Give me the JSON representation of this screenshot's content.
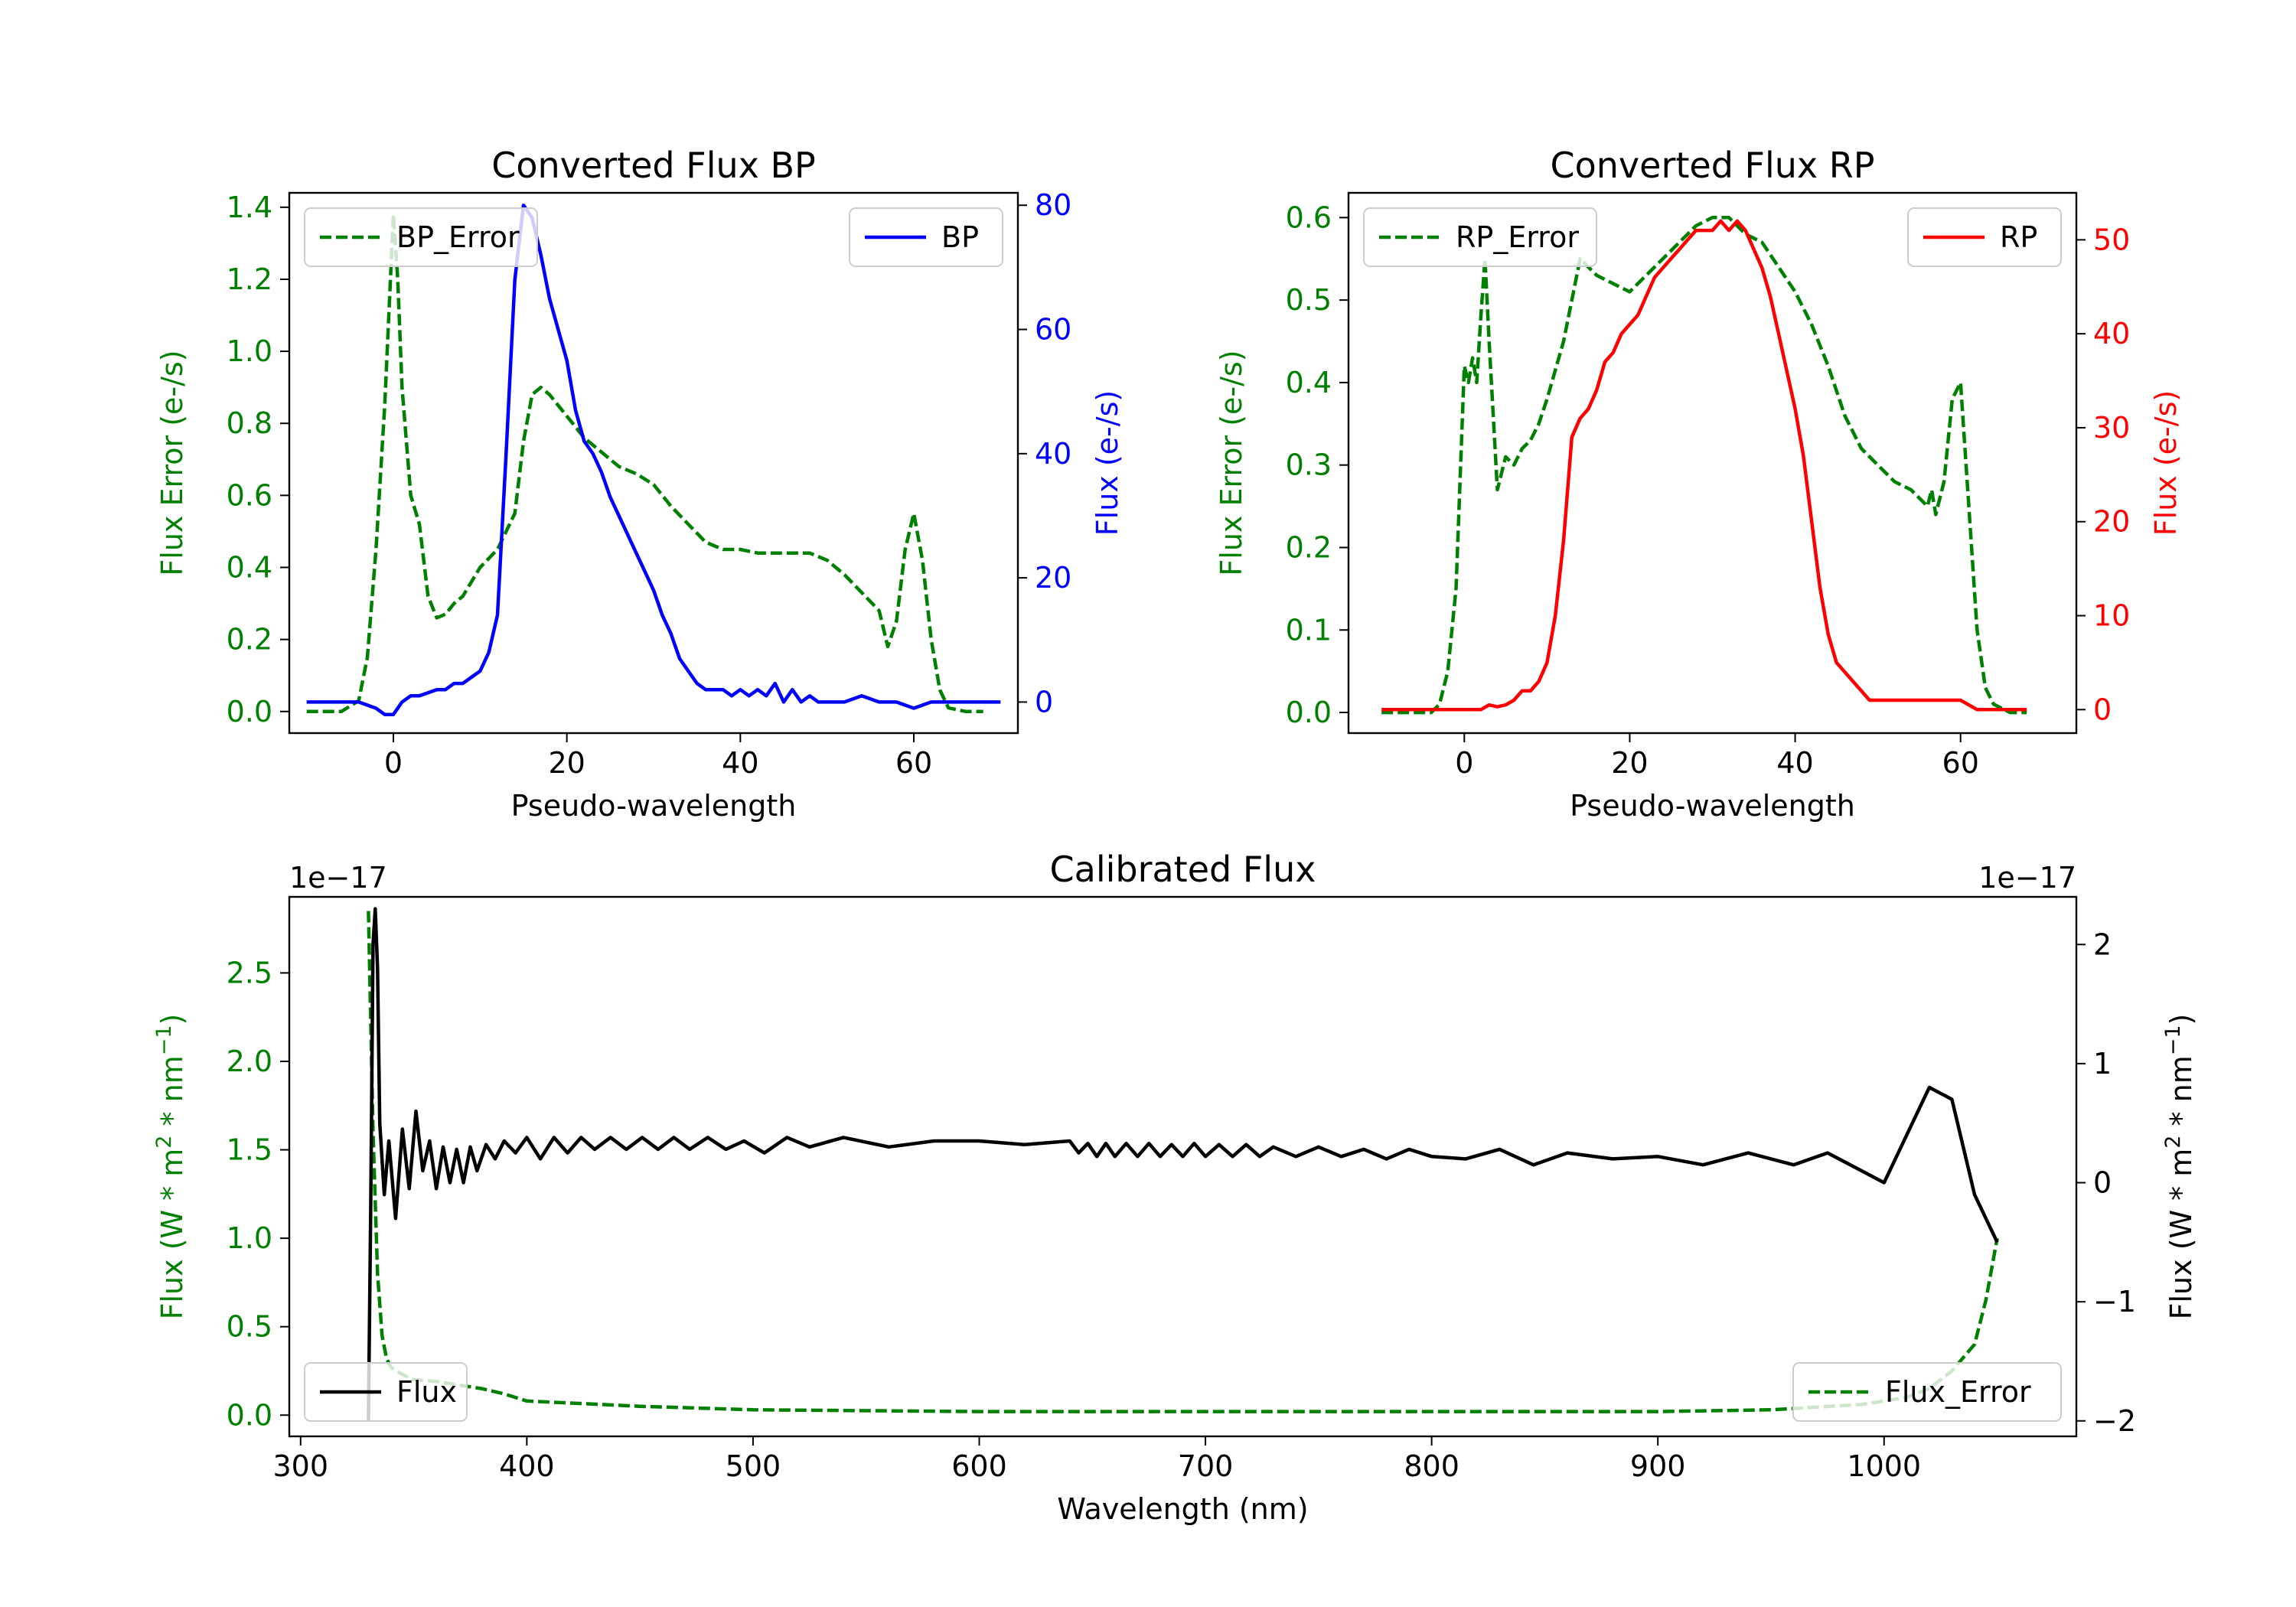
{
  "colors": {
    "err": "#008000",
    "bp": "#0000ff",
    "rp": "#ff0000",
    "flux": "#000000",
    "axis": "#000000"
  },
  "chart_data": [
    {
      "id": "bp",
      "type": "line",
      "title": "Converted Flux BP",
      "xlabel": "Pseudo-wavelength",
      "ylabel_left": "Flux Error (e-/s)",
      "ylabel_right": "Flux (e-/s)",
      "xlim": [
        -12,
        72
      ],
      "ylim_left": [
        -0.06,
        1.44
      ],
      "ylim_right": [
        -5,
        82
      ],
      "xticks": [
        0,
        20,
        40,
        60
      ],
      "yticks_left": [
        0.0,
        0.2,
        0.4,
        0.6,
        0.8,
        1.0,
        1.2,
        1.4
      ],
      "yticks_right": [
        0,
        20,
        40,
        60,
        80
      ],
      "legend_left": {
        "label": "BP_Error",
        "position": "upper-left"
      },
      "legend_right": {
        "label": "BP",
        "position": "upper-right"
      },
      "series": [
        {
          "name": "BP_Error",
          "axis": "left",
          "style": "dashed",
          "x": [
            -10,
            -6,
            -4,
            -3,
            -2,
            -1,
            0,
            0.5,
            1,
            2,
            3,
            4,
            5,
            6,
            7,
            8,
            9,
            10,
            12,
            14,
            15,
            16,
            17,
            18,
            19,
            20,
            22,
            24,
            26,
            28,
            30,
            32,
            34,
            36,
            38,
            40,
            42,
            44,
            46,
            48,
            50,
            52,
            54,
            56,
            57,
            58,
            59,
            60,
            61,
            62,
            63,
            64,
            66,
            68
          ],
          "y": [
            0.0,
            0.0,
            0.03,
            0.15,
            0.45,
            0.85,
            1.38,
            1.2,
            0.9,
            0.6,
            0.52,
            0.32,
            0.26,
            0.27,
            0.3,
            0.32,
            0.36,
            0.4,
            0.45,
            0.55,
            0.75,
            0.88,
            0.9,
            0.88,
            0.85,
            0.82,
            0.76,
            0.72,
            0.68,
            0.66,
            0.63,
            0.57,
            0.52,
            0.47,
            0.45,
            0.45,
            0.44,
            0.44,
            0.44,
            0.44,
            0.42,
            0.38,
            0.33,
            0.28,
            0.18,
            0.25,
            0.45,
            0.55,
            0.42,
            0.2,
            0.06,
            0.01,
            0.0,
            0.0
          ]
        },
        {
          "name": "BP",
          "axis": "right",
          "style": "solid",
          "x": [
            -10,
            -6,
            -4,
            -2,
            -1,
            0,
            1,
            2,
            3,
            5,
            6,
            7,
            8,
            9,
            10,
            11,
            12,
            13,
            14,
            15,
            16,
            17,
            18,
            19,
            20,
            21,
            22,
            23,
            24,
            25,
            26,
            27,
            28,
            29,
            30,
            31,
            32,
            33,
            34,
            35,
            36,
            37,
            38,
            39,
            40,
            41,
            42,
            43,
            44,
            45,
            46,
            47,
            48,
            49,
            50,
            52,
            54,
            56,
            58,
            60,
            62,
            65,
            70
          ],
          "y": [
            0,
            0,
            0,
            -1,
            -2,
            -2,
            0,
            1,
            1,
            2,
            2,
            3,
            3,
            4,
            5,
            8,
            14,
            40,
            68,
            80,
            78,
            72,
            65,
            60,
            55,
            47,
            42,
            40,
            37,
            33,
            30,
            27,
            24,
            21,
            18,
            14,
            11,
            7,
            5,
            3,
            2,
            2,
            2,
            1,
            2,
            1,
            2,
            1,
            3,
            0,
            2,
            0,
            1,
            0,
            0,
            0,
            1,
            0,
            0,
            -1,
            0,
            0,
            0
          ]
        }
      ]
    },
    {
      "id": "rp",
      "type": "line",
      "title": "Converted Flux RP",
      "xlabel": "Pseudo-wavelength",
      "ylabel_left": "Flux Error (e-/s)",
      "ylabel_right": "Flux (e-/s)",
      "xlim": [
        -14,
        74
      ],
      "ylim_left": [
        -0.025,
        0.63
      ],
      "ylim_right": [
        -2.5,
        55
      ],
      "xticks": [
        0,
        20,
        40,
        60
      ],
      "yticks_left": [
        0.0,
        0.1,
        0.2,
        0.3,
        0.4,
        0.5,
        0.6
      ],
      "yticks_right": [
        0,
        10,
        20,
        30,
        40,
        50
      ],
      "legend_left": {
        "label": "RP_Error",
        "position": "upper-left"
      },
      "legend_right": {
        "label": "RP",
        "position": "upper-right"
      },
      "series": [
        {
          "name": "RP_Error",
          "axis": "left",
          "style": "dashed",
          "x": [
            -10,
            -6,
            -4,
            -3,
            -2,
            -1,
            0,
            0.5,
            1,
            1.5,
            2,
            2.5,
            3,
            4,
            5,
            6,
            7,
            8,
            9,
            10,
            12,
            14,
            16,
            18,
            20,
            22,
            24,
            26,
            28,
            30,
            32,
            34,
            36,
            38,
            40,
            42,
            44,
            46,
            48,
            50,
            52,
            54,
            55,
            56,
            56.5,
            57,
            58,
            59,
            60,
            61,
            62,
            63,
            64,
            66,
            68
          ],
          "y": [
            0.0,
            0.0,
            0.0,
            0.01,
            0.05,
            0.15,
            0.42,
            0.4,
            0.43,
            0.4,
            0.48,
            0.55,
            0.45,
            0.27,
            0.31,
            0.3,
            0.32,
            0.33,
            0.35,
            0.38,
            0.45,
            0.55,
            0.53,
            0.52,
            0.51,
            0.53,
            0.55,
            0.57,
            0.59,
            0.6,
            0.6,
            0.58,
            0.57,
            0.54,
            0.51,
            0.47,
            0.42,
            0.36,
            0.32,
            0.3,
            0.28,
            0.27,
            0.26,
            0.25,
            0.27,
            0.24,
            0.28,
            0.38,
            0.4,
            0.25,
            0.1,
            0.03,
            0.01,
            0.0,
            0.0
          ]
        },
        {
          "name": "RP",
          "axis": "right",
          "style": "solid",
          "x": [
            -10,
            -6,
            -4,
            -2,
            0,
            2,
            3,
            4,
            5,
            6,
            7,
            8,
            9,
            10,
            11,
            12,
            13,
            14,
            15,
            16,
            17,
            18,
            19,
            20,
            21,
            22,
            23,
            24,
            25,
            26,
            27,
            28,
            29,
            30,
            31,
            32,
            33,
            34,
            35,
            36,
            37,
            38,
            39,
            40,
            41,
            42,
            43,
            44,
            45,
            46,
            47,
            48,
            49,
            50,
            52,
            54,
            56,
            58,
            60,
            62,
            65,
            68
          ],
          "y": [
            0,
            0,
            0,
            0,
            0,
            0,
            0.5,
            0.3,
            0.5,
            1,
            2,
            2,
            3,
            5,
            10,
            18,
            29,
            31,
            32,
            34,
            37,
            38,
            40,
            41,
            42,
            44,
            46,
            47,
            48,
            49,
            50,
            51,
            51,
            51,
            52,
            51,
            52,
            51,
            49,
            47,
            44,
            40,
            36,
            32,
            27,
            20,
            13,
            8,
            5,
            4,
            3,
            2,
            1,
            1,
            1,
            1,
            1,
            1,
            1,
            0,
            0,
            0
          ]
        }
      ]
    },
    {
      "id": "cal",
      "type": "line",
      "title": "Calibrated Flux",
      "xlabel": "Wavelength (nm)",
      "ylabel_left": "Flux (W * m^2 * nm^-1)",
      "ylabel_right": "Flux (W * m^2 * nm^-1)",
      "ylabel_text": "Flux (W * m",
      "ylabel_sup1": "2",
      "ylabel_mid": " * nm",
      "ylabel_sup2": "−1",
      "ylabel_end": ")",
      "offset_left": "1e−17",
      "offset_right": "1e−17",
      "xlim": [
        295,
        1085
      ],
      "ylim_left": [
        -0.12,
        2.93
      ],
      "ylim_right": [
        -2.13,
        2.4
      ],
      "xticks": [
        300,
        400,
        500,
        600,
        700,
        800,
        900,
        1000
      ],
      "yticks_left": [
        0.0,
        0.5,
        1.0,
        1.5,
        2.0,
        2.5
      ],
      "yticks_left_labels": [
        "0.0",
        "0.5",
        "1.0",
        "1.5",
        "2.0",
        "2.5"
      ],
      "yticks_right": [
        -2,
        -1,
        0,
        1,
        2
      ],
      "yticks_right_labels": [
        "−2",
        "−1",
        "0",
        "1",
        "2"
      ],
      "legend_left": {
        "label": "Flux",
        "position": "lower-left"
      },
      "legend_right": {
        "label": "Flux_Error",
        "position": "lower-right"
      },
      "series": [
        {
          "name": "Flux_Error",
          "axis": "left",
          "style": "dashed",
          "x": [
            330,
            332,
            334,
            336,
            338,
            340,
            345,
            350,
            360,
            370,
            380,
            390,
            400,
            450,
            500,
            600,
            700,
            800,
            900,
            950,
            990,
            1010,
            1020,
            1030,
            1040,
            1045,
            1050
          ],
          "y": [
            2.85,
            1.6,
            0.8,
            0.45,
            0.32,
            0.27,
            0.23,
            0.2,
            0.19,
            0.17,
            0.15,
            0.12,
            0.08,
            0.05,
            0.03,
            0.02,
            0.02,
            0.02,
            0.02,
            0.03,
            0.06,
            0.1,
            0.15,
            0.25,
            0.4,
            0.65,
            1.0
          ]
        },
        {
          "name": "Flux",
          "axis": "right",
          "style": "solid",
          "x": [
            330,
            331,
            332,
            333,
            334,
            335,
            337,
            339,
            342,
            345,
            348,
            351,
            354,
            357,
            360,
            363,
            366,
            369,
            372,
            375,
            378,
            382,
            386,
            390,
            395,
            400,
            406,
            412,
            418,
            424,
            430,
            437,
            444,
            451,
            458,
            465,
            472,
            480,
            488,
            496,
            505,
            515,
            525,
            540,
            560,
            580,
            600,
            620,
            640,
            644,
            648,
            652,
            656,
            660,
            665,
            670,
            675,
            680,
            685,
            690,
            695,
            700,
            706,
            712,
            718,
            724,
            730,
            740,
            750,
            760,
            770,
            780,
            790,
            800,
            815,
            830,
            845,
            860,
            880,
            900,
            920,
            940,
            960,
            975,
            990,
            1000,
            1010,
            1020,
            1030,
            1035,
            1040,
            1050
          ],
          "y": [
            -2.0,
            -0.2,
            2.0,
            2.3,
            1.8,
            0.5,
            -0.1,
            0.35,
            -0.3,
            0.45,
            -0.05,
            0.6,
            0.1,
            0.35,
            -0.05,
            0.3,
            0.0,
            0.28,
            0.0,
            0.3,
            0.1,
            0.32,
            0.2,
            0.35,
            0.25,
            0.38,
            0.2,
            0.38,
            0.25,
            0.38,
            0.28,
            0.38,
            0.28,
            0.38,
            0.28,
            0.38,
            0.28,
            0.38,
            0.28,
            0.35,
            0.25,
            0.38,
            0.3,
            0.38,
            0.3,
            0.35,
            0.35,
            0.32,
            0.35,
            0.25,
            0.33,
            0.22,
            0.33,
            0.22,
            0.33,
            0.22,
            0.33,
            0.22,
            0.32,
            0.22,
            0.33,
            0.22,
            0.32,
            0.22,
            0.32,
            0.22,
            0.3,
            0.22,
            0.3,
            0.22,
            0.28,
            0.2,
            0.28,
            0.22,
            0.2,
            0.28,
            0.15,
            0.25,
            0.2,
            0.22,
            0.15,
            0.25,
            0.15,
            0.25,
            0.1,
            0.0,
            0.4,
            0.8,
            0.7,
            0.3,
            -0.1,
            -0.5
          ]
        }
      ]
    }
  ]
}
